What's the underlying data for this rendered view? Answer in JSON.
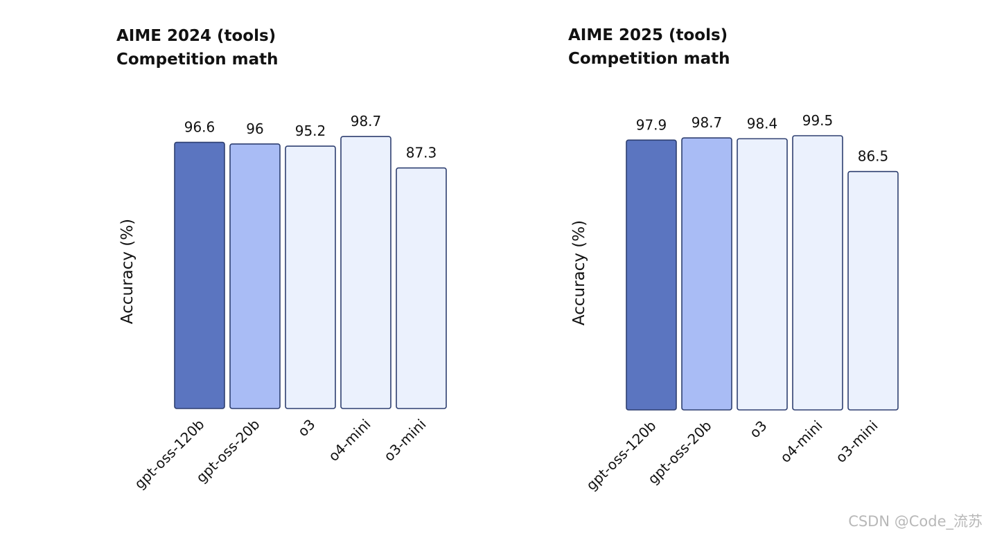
{
  "chart_data": [
    {
      "type": "bar",
      "title": "AIME 2024 (tools)",
      "subtitle": "Competition math",
      "ylabel": "Accuracy (%)",
      "xlabel": "",
      "categories": [
        "gpt-oss-120b",
        "gpt-oss-20b",
        "o3",
        "o4-mini",
        "o3-mini"
      ],
      "values": [
        96.6,
        96,
        95.2,
        98.7,
        87.3
      ],
      "value_labels": [
        "96.6",
        "96",
        "95.2",
        "98.7",
        "87.3"
      ],
      "ylim": [
        0,
        100
      ],
      "grid": false,
      "bar_colors": [
        "#5b75c0",
        "#a9bcf5",
        "#ebf1fd",
        "#ebf1fd",
        "#ebf1fd"
      ],
      "bar_edge_color": "#2e3f70"
    },
    {
      "type": "bar",
      "title": "AIME 2025 (tools)",
      "subtitle": "Competition math",
      "ylabel": "Accuracy (%)",
      "xlabel": "",
      "categories": [
        "gpt-oss-120b",
        "gpt-oss-20b",
        "o3",
        "o4-mini",
        "o3-mini"
      ],
      "values": [
        97.9,
        98.7,
        98.4,
        99.5,
        86.5
      ],
      "value_labels": [
        "97.9",
        "98.7",
        "98.4",
        "99.5",
        "86.5"
      ],
      "ylim": [
        0,
        100
      ],
      "grid": false,
      "bar_colors": [
        "#5b75c0",
        "#a9bcf5",
        "#ebf1fd",
        "#ebf1fd",
        "#ebf1fd"
      ],
      "bar_edge_color": "#2e3f70"
    }
  ],
  "watermark": "CSDN @Code_流苏"
}
